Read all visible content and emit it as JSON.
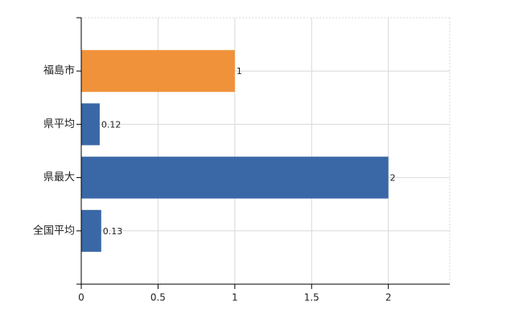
{
  "chart_data": {
    "type": "barh",
    "categories": [
      "福島市",
      "県平均",
      "県最大",
      "全国平均"
    ],
    "values": [
      1,
      0.12,
      2,
      0.13
    ],
    "colors": [
      "#f0923a",
      "#3a67a6",
      "#3a67a6",
      "#3a67a6"
    ],
    "xlim": [
      0,
      2.4
    ],
    "xticks": [
      0,
      0.5,
      1,
      1.5,
      2
    ],
    "grid": true
  }
}
